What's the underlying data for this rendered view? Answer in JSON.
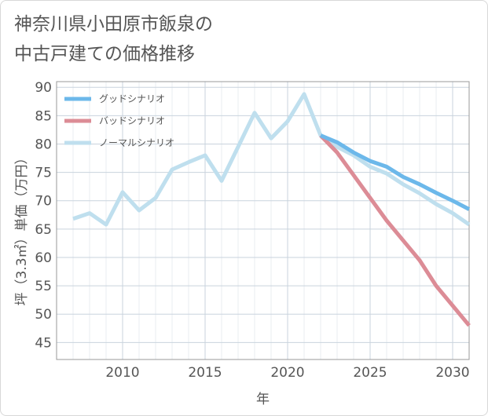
{
  "title_lines": [
    "神奈川県小田原市飯泉の",
    "中古戸建ての価格推移"
  ],
  "chart_data": {
    "type": "line",
    "xlabel": "年",
    "ylabel": "坪（3.3㎡）単価（万円）",
    "xlim": [
      2006,
      2031
    ],
    "ylim": [
      42,
      91
    ],
    "xticks": [
      2010,
      2015,
      2020,
      2025,
      2030
    ],
    "yticks": [
      45,
      50,
      55,
      60,
      65,
      70,
      75,
      80,
      85,
      90
    ],
    "grid": true,
    "legend_position": "top-left",
    "series": [
      {
        "name": "グッドシナリオ",
        "color": "#6cb8ea",
        "x": [
          2022,
          2023,
          2024,
          2025,
          2026,
          2027,
          2028,
          2029,
          2030,
          2031
        ],
        "y": [
          81.5,
          80.3,
          78.5,
          77.0,
          76.0,
          74.2,
          72.9,
          71.4,
          70.0,
          68.5
        ]
      },
      {
        "name": "バッドシナリオ",
        "color": "#dc8c96",
        "x": [
          2022,
          2023,
          2024,
          2025,
          2026,
          2027,
          2028,
          2029,
          2030,
          2031
        ],
        "y": [
          81.5,
          78.5,
          74.5,
          70.5,
          66.5,
          63.0,
          59.5,
          55.0,
          51.5,
          48.0
        ]
      },
      {
        "name": "ノーマルシナリオ",
        "color": "#bfdfee",
        "x": [
          2007,
          2008,
          2009,
          2010,
          2011,
          2012,
          2013,
          2014,
          2015,
          2016,
          2017,
          2018,
          2019,
          2020,
          2021,
          2022,
          2023,
          2024,
          2025,
          2026,
          2027,
          2028,
          2029,
          2030,
          2031
        ],
        "y": [
          66.8,
          67.8,
          65.8,
          71.5,
          68.3,
          70.5,
          75.5,
          76.8,
          78.0,
          73.5,
          79.5,
          85.5,
          81.0,
          84.0,
          88.8,
          81.5,
          79.5,
          78.0,
          76.0,
          74.8,
          72.9,
          71.3,
          69.4,
          67.8,
          65.8
        ]
      }
    ]
  }
}
